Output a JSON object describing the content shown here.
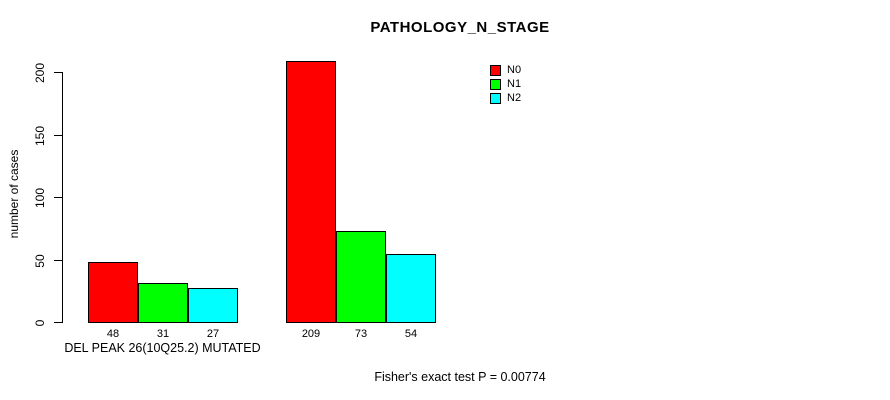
{
  "chart_data": {
    "type": "bar",
    "title": "PATHOLOGY_N_STAGE",
    "ylabel": "number of cases",
    "xlabel": "",
    "ylim": [
      0,
      200
    ],
    "yticks": [
      0,
      50,
      100,
      150,
      200
    ],
    "grid": false,
    "legend_position": "top-right",
    "categories": [
      "DEL PEAK 26(10Q25.2) MUTATED",
      ""
    ],
    "series": [
      {
        "name": "N0",
        "color": "#ff0000",
        "values": [
          48,
          209
        ]
      },
      {
        "name": "N1",
        "color": "#00ff00",
        "values": [
          31,
          73
        ]
      },
      {
        "name": "N2",
        "color": "#00ffff",
        "values": [
          27,
          54
        ]
      }
    ],
    "bar_value_labels": [
      [
        48,
        31,
        27
      ],
      [
        209,
        73,
        54
      ]
    ],
    "footnote": "Fisher's exact test P = 0.00774",
    "axis_color": "#000000",
    "background_color": "#ffffff"
  }
}
